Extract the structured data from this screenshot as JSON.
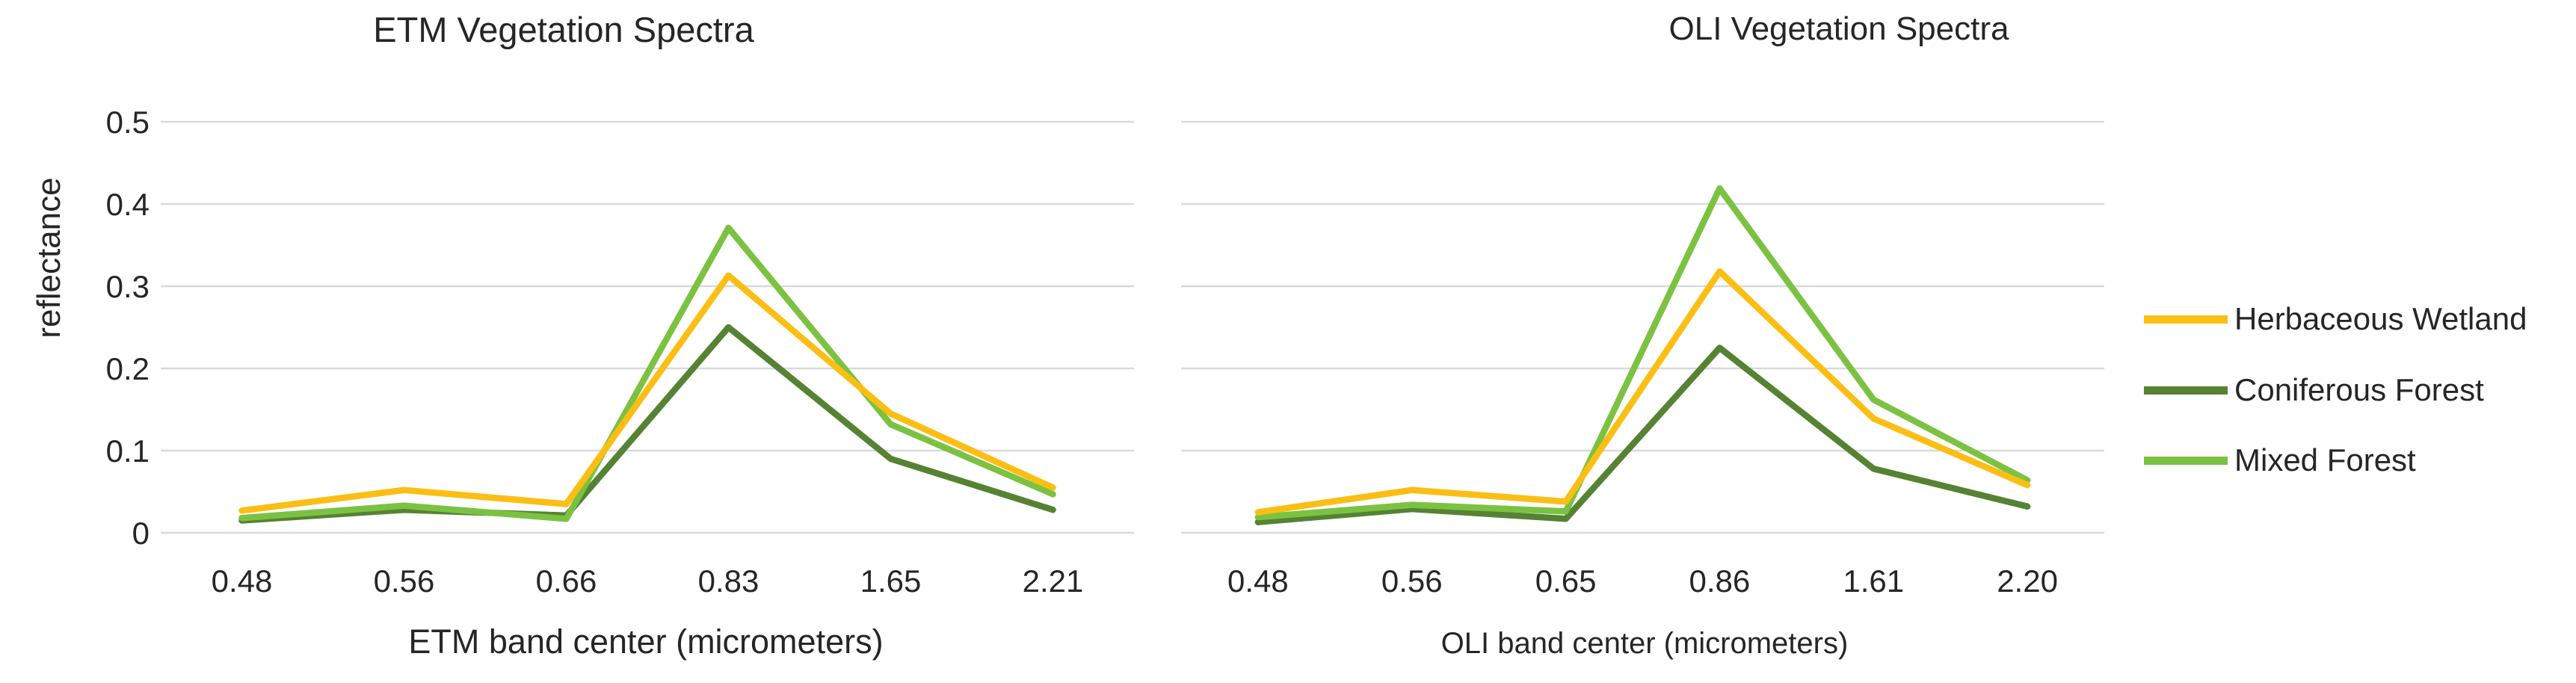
{
  "chart_data": [
    {
      "type": "line",
      "title": "ETM Vegetation Spectra",
      "xlabel": "ETM band center (micrometers)",
      "ylabel": "reflectance",
      "categories": [
        "0.48",
        "0.56",
        "0.66",
        "0.83",
        "1.65",
        "2.21"
      ],
      "ylim": [
        0,
        0.5
      ],
      "ytick_values": [
        0,
        0.1,
        0.2,
        0.3,
        0.4,
        0.5
      ],
      "ytick_labels": [
        "0",
        "0.1",
        "0.2",
        "0.3",
        "0.4",
        "0.5"
      ],
      "grid": true,
      "show_ytick_labels": true,
      "series": [
        {
          "name": "Herbaceous Wetland",
          "color": "#FBBE14",
          "values": [
            0.027,
            0.052,
            0.035,
            0.313,
            0.145,
            0.055
          ]
        },
        {
          "name": "Coniferous Forest",
          "color": "#568234",
          "values": [
            0.015,
            0.028,
            0.021,
            0.25,
            0.09,
            0.028
          ]
        },
        {
          "name": "Mixed Forest",
          "color": "#7CC242",
          "values": [
            0.018,
            0.033,
            0.017,
            0.371,
            0.132,
            0.047
          ]
        }
      ]
    },
    {
      "type": "line",
      "title": "OLI Vegetation Spectra",
      "xlabel": "OLI band center (micrometers)",
      "ylabel": "",
      "categories": [
        "0.48",
        "0.56",
        "0.65",
        "0.86",
        "1.61",
        "2.20"
      ],
      "ylim": [
        0,
        0.5
      ],
      "ytick_values": [
        0,
        0.1,
        0.2,
        0.3,
        0.4,
        0.5
      ],
      "ytick_labels": [
        "0",
        "0.1",
        "0.2",
        "0.3",
        "0.4",
        "0.5"
      ],
      "grid": true,
      "show_ytick_labels": false,
      "series": [
        {
          "name": "Herbaceous Wetland",
          "color": "#FBBE14",
          "values": [
            0.025,
            0.052,
            0.038,
            0.318,
            0.139,
            0.058
          ]
        },
        {
          "name": "Coniferous Forest",
          "color": "#568234",
          "values": [
            0.013,
            0.029,
            0.017,
            0.225,
            0.078,
            0.032
          ]
        },
        {
          "name": "Mixed Forest",
          "color": "#7CC242",
          "values": [
            0.019,
            0.034,
            0.026,
            0.419,
            0.162,
            0.064
          ]
        }
      ]
    }
  ],
  "legend": {
    "position": "right",
    "items": [
      {
        "label": "Herbaceous Wetland",
        "color": "#FBBE14"
      },
      {
        "label": "Coniferous Forest",
        "color": "#568234"
      },
      {
        "label": "Mixed Forest",
        "color": "#7CC242"
      }
    ]
  },
  "style": {
    "gridline_color": "#D9D9D9",
    "text_color": "#262626",
    "background": "#FFFFFF"
  }
}
